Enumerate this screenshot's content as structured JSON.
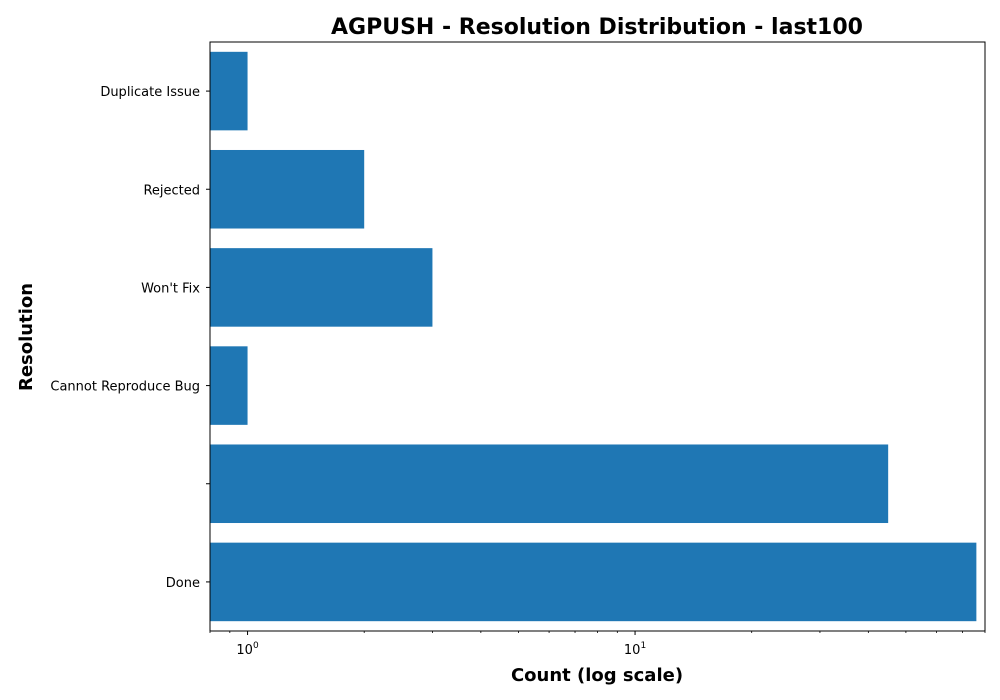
{
  "chart_data": {
    "type": "bar",
    "orientation": "horizontal",
    "title": "AGPUSH - Resolution Distribution - last100",
    "xlabel": "Count (log scale)",
    "ylabel": "Resolution",
    "xscale": "log",
    "xlim": [
      0.8,
      80
    ],
    "x_ticks": [
      {
        "value": 1,
        "base": "10",
        "exp": "0"
      },
      {
        "value": 10,
        "base": "10",
        "exp": "1"
      }
    ],
    "categories": [
      "Duplicate Issue",
      "Rejected",
      "Won't Fix",
      "Cannot Reproduce Bug",
      "",
      "Done"
    ],
    "values": [
      1,
      2,
      3,
      1,
      45,
      76
    ],
    "grid": false,
    "colors": {
      "bar": "#1f77b4",
      "axis": "#000000"
    }
  }
}
